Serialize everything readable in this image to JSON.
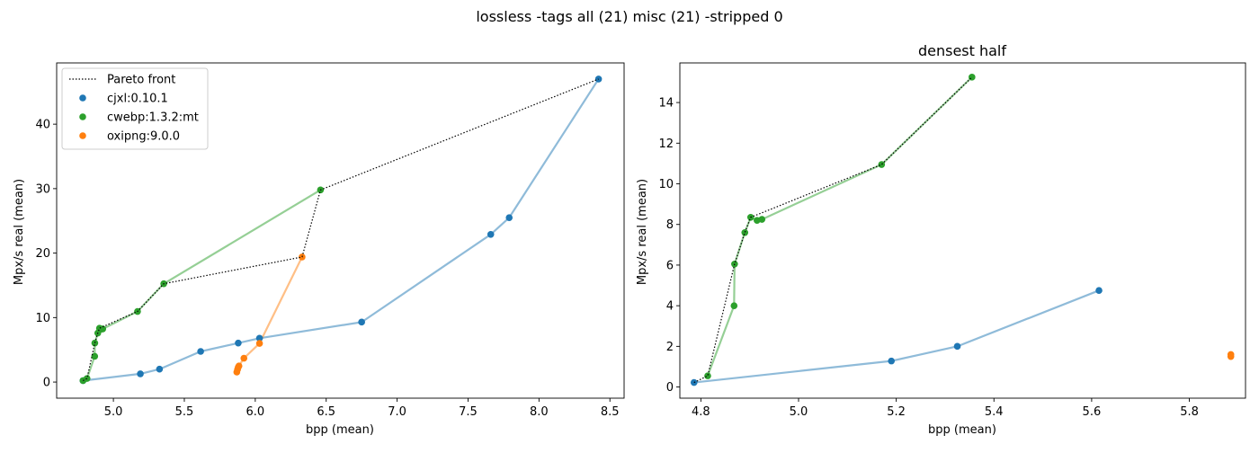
{
  "figure": {
    "suptitle": "lossless -tags all (21) misc (21) -stripped 0"
  },
  "colors": {
    "cjxl": "#1f77b4",
    "cwebp": "#2ca02c",
    "oxipng": "#ff7f0e",
    "pareto": "#000000"
  },
  "chart_data": [
    {
      "type": "line",
      "title": "",
      "xlabel": "bpp (mean)",
      "ylabel": "Mpx/s real (mean)",
      "xlim": [
        4.6,
        8.6
      ],
      "ylim": [
        -2.5,
        49.5
      ],
      "xticks": [
        5.0,
        5.5,
        6.0,
        6.5,
        7.0,
        7.5,
        8.0,
        8.5
      ],
      "xtick_labels": [
        "5.0",
        "5.5",
        "6.0",
        "6.5",
        "7.0",
        "7.5",
        "8.0",
        "8.5"
      ],
      "yticks": [
        0,
        10,
        20,
        30,
        40
      ],
      "ytick_labels": [
        "0",
        "10",
        "20",
        "30",
        "40"
      ],
      "grid": false,
      "legend": {
        "placement": "upper left",
        "entries": [
          "Pareto front",
          "cjxl:0.10.1",
          "cwebp:1.3.2:mt",
          "oxipng:9.0.0"
        ]
      },
      "series": [
        {
          "name": "cjxl:0.10.1",
          "color": "#1f77b4",
          "points": [
            [
              4.786,
              0.22
            ],
            [
              5.19,
              1.28
            ],
            [
              5.325,
              2.0
            ],
            [
              5.615,
              4.75
            ],
            [
              5.88,
              6.05
            ],
            [
              6.03,
              6.8
            ],
            [
              6.75,
              9.3
            ],
            [
              7.66,
              22.9
            ],
            [
              7.79,
              25.5
            ],
            [
              8.42,
              47.0
            ]
          ]
        },
        {
          "name": "cwebp:1.3.2:mt",
          "color": "#2ca02c",
          "points": [
            [
              4.786,
              0.22
            ],
            [
              4.814,
              0.55
            ],
            [
              4.868,
              4.0
            ],
            [
              4.869,
              6.05
            ],
            [
              4.89,
              7.6
            ],
            [
              4.902,
              8.35
            ],
            [
              4.915,
              8.2
            ],
            [
              4.925,
              8.25
            ],
            [
              5.17,
              10.95
            ],
            [
              5.355,
              15.25
            ],
            [
              6.46,
              29.8
            ]
          ]
        },
        {
          "name": "oxipng:9.0.0",
          "color": "#ff7f0e",
          "points": [
            [
              5.87,
              1.55
            ],
            [
              5.875,
              1.95
            ],
            [
              5.88,
              2.3
            ],
            [
              5.885,
              2.5
            ],
            [
              5.92,
              3.7
            ],
            [
              6.03,
              6.0
            ],
            [
              6.33,
              19.4
            ]
          ]
        },
        {
          "name": "Pareto front",
          "color": "#000000",
          "points": [
            [
              4.786,
              0.22
            ],
            [
              4.814,
              0.55
            ],
            [
              4.869,
              6.05
            ],
            [
              4.89,
              7.6
            ],
            [
              4.902,
              8.35
            ],
            [
              5.17,
              10.95
            ],
            [
              5.355,
              15.25
            ],
            [
              6.33,
              19.4
            ],
            [
              6.46,
              29.8
            ],
            [
              8.42,
              47.0
            ]
          ]
        }
      ]
    },
    {
      "type": "line",
      "title": "densest half",
      "xlabel": "bpp (mean)",
      "ylabel": "Mpx/s real (mean)",
      "xlim": [
        4.757,
        5.915
      ],
      "ylim": [
        -0.55,
        15.95
      ],
      "xticks": [
        4.8,
        5.0,
        5.2,
        5.4,
        5.6,
        5.8
      ],
      "xtick_labels": [
        "4.8",
        "5.0",
        "5.2",
        "5.4",
        "5.6",
        "5.8"
      ],
      "yticks": [
        0,
        2,
        4,
        6,
        8,
        10,
        12,
        14
      ],
      "ytick_labels": [
        "0",
        "2",
        "4",
        "6",
        "8",
        "10",
        "12",
        "14"
      ],
      "grid": false,
      "series": [
        {
          "name": "cjxl:0.10.1",
          "color": "#1f77b4",
          "points": [
            [
              4.786,
              0.22
            ],
            [
              5.19,
              1.28
            ],
            [
              5.325,
              2.0
            ],
            [
              5.615,
              4.75
            ]
          ]
        },
        {
          "name": "cwebp:1.3.2:mt",
          "color": "#2ca02c",
          "points": [
            [
              4.814,
              0.55
            ],
            [
              4.868,
              4.0
            ],
            [
              4.869,
              6.05
            ],
            [
              4.89,
              7.6
            ],
            [
              4.902,
              8.35
            ],
            [
              4.915,
              8.2
            ],
            [
              4.925,
              8.25
            ],
            [
              5.17,
              10.95
            ],
            [
              5.355,
              15.25
            ]
          ]
        },
        {
          "name": "oxipng:9.0.0",
          "color": "#ff7f0e",
          "points": [
            [
              5.885,
              1.5
            ],
            [
              5.885,
              1.6
            ]
          ]
        },
        {
          "name": "Pareto front",
          "color": "#000000",
          "points": [
            [
              4.786,
              0.22
            ],
            [
              4.814,
              0.55
            ],
            [
              4.869,
              6.05
            ],
            [
              4.89,
              7.6
            ],
            [
              4.902,
              8.35
            ],
            [
              5.17,
              10.95
            ],
            [
              5.355,
              15.25
            ]
          ]
        }
      ]
    }
  ]
}
